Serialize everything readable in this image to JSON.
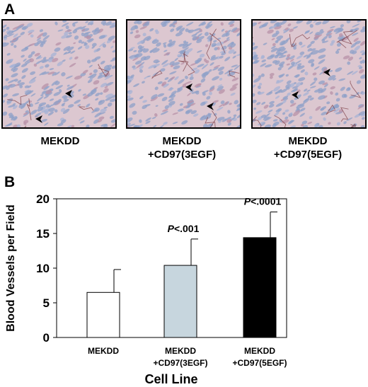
{
  "panels": {
    "a_label": "A",
    "b_label": "B"
  },
  "micrographs": [
    {
      "caption_line1": "MEKDD",
      "caption_line2": ""
    },
    {
      "caption_line1": "MEKDD",
      "caption_line2": "+CD97(3EGF)"
    },
    {
      "caption_line1": "MEKDD",
      "caption_line2": "+CD97(5EGF)"
    }
  ],
  "chart_data": {
    "type": "bar",
    "categories": [
      [
        "MEKDD"
      ],
      [
        "MEKDD",
        "+CD97(3EGF)"
      ],
      [
        "MEKDD",
        "+CD97(5EGF)"
      ]
    ],
    "values": [
      6.5,
      10.4,
      14.4
    ],
    "errors": [
      3.3,
      3.8,
      3.7
    ],
    "annotations": [
      "",
      "P<.001",
      "P<.0001"
    ],
    "bar_colors": [
      "#ffffff",
      "#c7d6de",
      "#000000"
    ],
    "xlabel": "Cell Line",
    "ylabel": "Blood Vessels per Field",
    "ylim": [
      0,
      20
    ],
    "yticks": [
      0,
      5,
      10,
      15,
      20
    ]
  }
}
